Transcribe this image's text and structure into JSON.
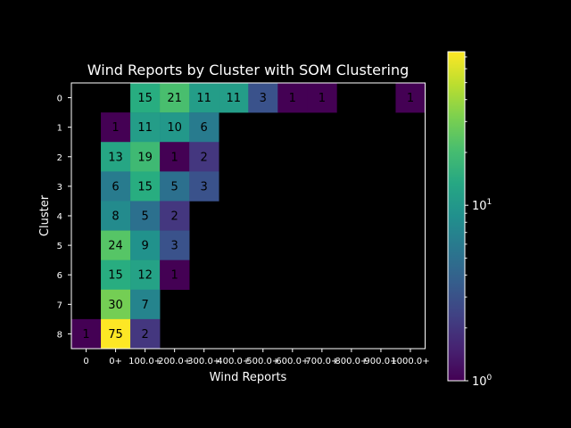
{
  "chart_data": {
    "type": "heatmap",
    "title": "Wind Reports by Cluster with SOM Clustering",
    "xlabel": "Wind Reports",
    "ylabel": "Cluster",
    "x_categories": [
      "0",
      "0+",
      "100.0+",
      "200.0+",
      "300.0+",
      "400.0+",
      "500.0+",
      "600.0+",
      "700.0+",
      "800.0+",
      "900.0+",
      "1000.0+"
    ],
    "y_categories": [
      "0",
      "1",
      "2",
      "3",
      "4",
      "5",
      "6",
      "7",
      "8"
    ],
    "values": [
      [
        null,
        null,
        15,
        21,
        11,
        11,
        3,
        1,
        1,
        null,
        null,
        1
      ],
      [
        null,
        1,
        11,
        10,
        6,
        null,
        null,
        null,
        null,
        null,
        null,
        null
      ],
      [
        null,
        13,
        19,
        1,
        2,
        null,
        null,
        null,
        null,
        null,
        null,
        null
      ],
      [
        null,
        6,
        15,
        5,
        3,
        null,
        null,
        null,
        null,
        null,
        null,
        null
      ],
      [
        null,
        8,
        5,
        2,
        null,
        null,
        null,
        null,
        null,
        null,
        null,
        null
      ],
      [
        null,
        24,
        9,
        3,
        null,
        null,
        null,
        null,
        null,
        null,
        null,
        null
      ],
      [
        null,
        15,
        12,
        1,
        null,
        null,
        null,
        null,
        null,
        null,
        null,
        null
      ],
      [
        null,
        30,
        7,
        null,
        null,
        null,
        null,
        null,
        null,
        null,
        null,
        null
      ],
      [
        1,
        75,
        2,
        null,
        null,
        null,
        null,
        null,
        null,
        null,
        null,
        null
      ]
    ],
    "color_scale": "log",
    "colormap": "viridis",
    "vmin": 1,
    "vmax": 75,
    "colorbar_ticks": [
      {
        "value": 1,
        "base": "10",
        "exp": "0"
      },
      {
        "value": 10,
        "base": "10",
        "exp": "1"
      }
    ],
    "background": "#000000"
  }
}
